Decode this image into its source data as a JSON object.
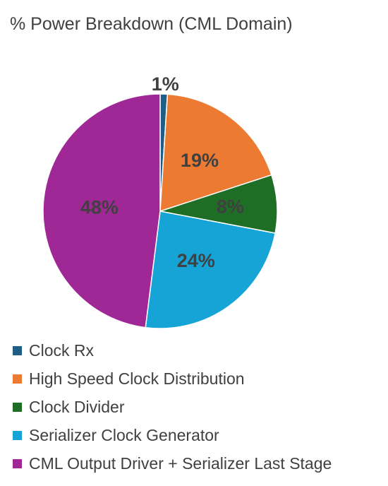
{
  "chart_data": {
    "type": "pie",
    "title": "% Power Breakdown (CML Domain)",
    "legend_position": "bottom",
    "slices": [
      {
        "label": "Clock Rx",
        "value": 1,
        "data_label": "1%",
        "color": "#1f5f86"
      },
      {
        "label": "High Speed Clock Distribution",
        "value": 19,
        "data_label": "19%",
        "color": "#ec7a32"
      },
      {
        "label": "Clock Divider",
        "value": 8,
        "data_label": "8%",
        "color": "#1e6e26"
      },
      {
        "label": "Serializer Clock Generator",
        "value": 24,
        "data_label": "24%",
        "color": "#16a3d6"
      },
      {
        "label": "CML Output Driver + Serializer Last Stage",
        "value": 48,
        "data_label": "48%",
        "color": "#a02896"
      }
    ]
  }
}
